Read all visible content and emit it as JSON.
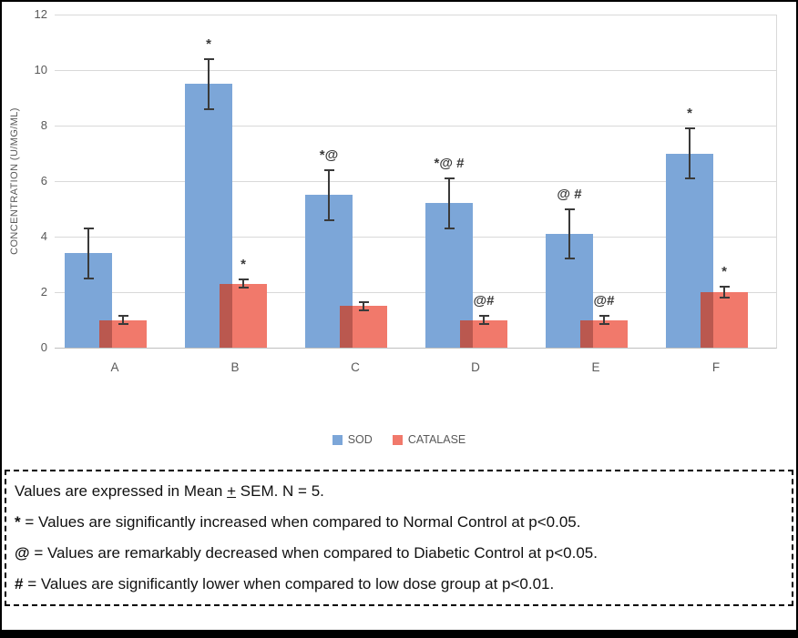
{
  "chart_data": {
    "type": "bar",
    "title": "",
    "categories": [
      "A",
      "B",
      "C",
      "D",
      "E",
      "F"
    ],
    "series": [
      {
        "name": "SOD",
        "color": "#7CA6D8",
        "values": [
          3.4,
          9.5,
          5.5,
          5.2,
          4.1,
          7.0
        ],
        "errors": [
          0.9,
          0.9,
          0.9,
          0.9,
          0.9,
          0.9
        ],
        "annotations": [
          "",
          "*",
          "*@",
          "*@ #",
          "@ #",
          "*"
        ]
      },
      {
        "name": "CATALASE",
        "color": "#F1796B",
        "overlap_color": "#BA584F",
        "values": [
          1.0,
          2.3,
          1.5,
          1.0,
          1.0,
          2.0
        ],
        "errors": [
          0.15,
          0.15,
          0.15,
          0.15,
          0.15,
          0.2
        ],
        "annotations": [
          "",
          "*",
          "",
          "@#",
          "@#",
          "*"
        ]
      }
    ],
    "xlabel": "",
    "ylabel": "CONCENTRATION (U/MG/ML)",
    "ylim": [
      0,
      12
    ],
    "yticks": [
      0,
      2,
      4,
      6,
      8,
      10,
      12
    ],
    "grid": true,
    "legend_position": "bottom"
  },
  "footnotes": {
    "line1": {
      "pre": "Values are expressed in Mean ",
      "plus": "+",
      "post": " SEM. N = 5."
    },
    "items": [
      {
        "symbol": "*",
        "text": "= Values are significantly increased when compared to Normal Control at p<0.05."
      },
      {
        "symbol": "@",
        "text": "= Values are remarkably decreased when compared to Diabetic Control at p<0.05."
      },
      {
        "symbol": "#",
        "text": "= Values are significantly lower when compared to low dose group at p<0.01."
      }
    ]
  }
}
